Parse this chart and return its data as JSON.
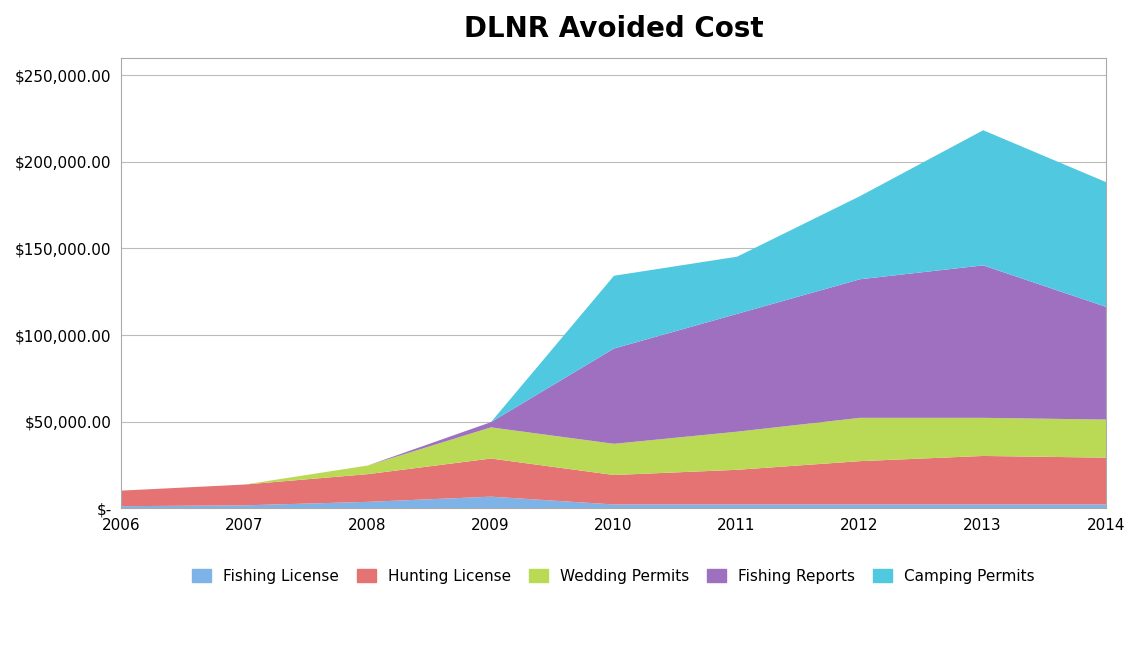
{
  "title": "DLNR Avoided Cost",
  "years": [
    2006,
    2007,
    2008,
    2009,
    2010,
    2011,
    2012,
    2013,
    2014
  ],
  "series": {
    "Fishing License": [
      1500,
      2000,
      4000,
      7000,
      2500,
      2500,
      2500,
      2500,
      2500
    ],
    "Hunting License": [
      9000,
      12000,
      16000,
      22000,
      17000,
      20000,
      25000,
      28000,
      27000
    ],
    "Wedding Permits": [
      0,
      0,
      5000,
      18000,
      18000,
      22000,
      25000,
      22000,
      22000
    ],
    "Fishing Reports": [
      0,
      0,
      0,
      3000,
      55000,
      68000,
      80000,
      88000,
      65000
    ],
    "Camping Permits": [
      0,
      0,
      0,
      0,
      42000,
      33000,
      48000,
      78000,
      72000
    ]
  },
  "colors": {
    "Fishing License": "#7EB3E8",
    "Hunting License": "#E57373",
    "Wedding Permits": "#BADA55",
    "Fishing Reports": "#A070C0",
    "Camping Permits": "#50C8E0"
  },
  "ylim": [
    0,
    260000
  ],
  "yticks": [
    0,
    50000,
    100000,
    150000,
    200000,
    250000
  ],
  "ytick_labels": [
    "$-",
    "$50,000.00",
    "$100,000.00",
    "$150,000.00",
    "$200,000.00",
    "$250,000.00"
  ],
  "background_color": "#FFFFFF",
  "plot_bg_color": "#FFFFFF",
  "title_fontsize": 20,
  "legend_fontsize": 11,
  "grid_color": "#BBBBBB",
  "spine_color": "#AAAAAA"
}
